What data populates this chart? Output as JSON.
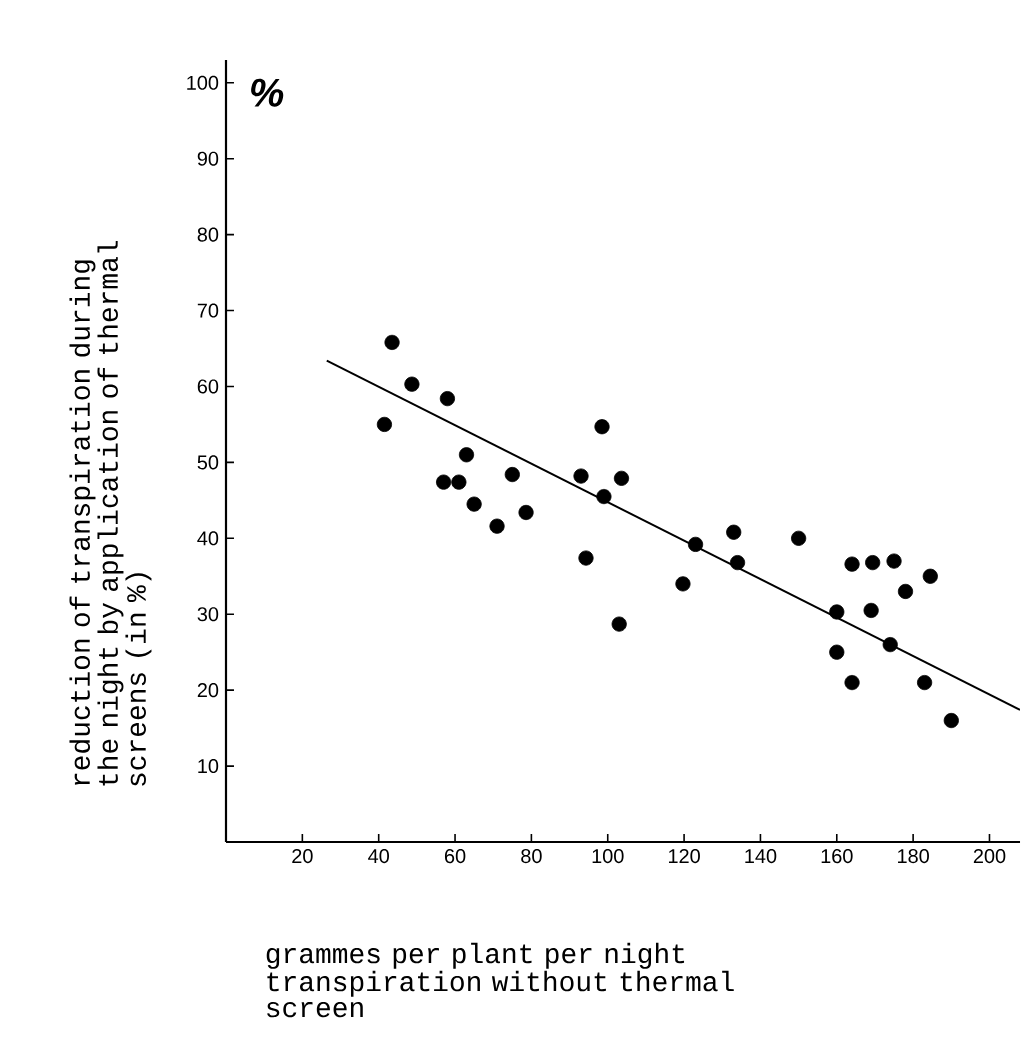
{
  "chart_data": {
    "type": "scatter",
    "xlabel": "grammes per plant per night transpiration without thermal screen",
    "ylabel": "reduction of transpiration during the night by application of thermal screens (in %)",
    "annotations": [
      "%"
    ],
    "xlim": [
      0,
      208
    ],
    "ylim": [
      0,
      103
    ],
    "xticks": [
      20,
      40,
      60,
      80,
      100,
      120,
      140,
      160,
      180,
      200
    ],
    "yticks": [
      10,
      20,
      30,
      40,
      50,
      60,
      70,
      80,
      90,
      100
    ],
    "grid": false,
    "series": [
      {
        "color": "#000000",
        "marker": "circle",
        "x": [
          43.5,
          48.7,
          58,
          41.5,
          98.5,
          63,
          57,
          61,
          75,
          93,
          103.6,
          99,
          65,
          78.6,
          71,
          94.3,
          123,
          119.7,
          103,
          133,
          134,
          150,
          164,
          169.4,
          175,
          184.5,
          178,
          169,
          160,
          160,
          174,
          164,
          183,
          190
        ],
        "values": [
          65.8,
          60.3,
          58.4,
          55,
          54.7,
          51,
          47.4,
          47.4,
          48.4,
          48.2,
          47.9,
          45.5,
          44.5,
          43.4,
          41.6,
          37.4,
          39.2,
          34,
          28.7,
          40.8,
          36.8,
          40,
          36.6,
          36.8,
          37,
          35,
          33,
          30.5,
          30.3,
          25,
          26,
          21,
          21,
          16
        ]
      },
      {
        "type": "line",
        "color": "#000000",
        "marker": "none",
        "line_style": "solid",
        "x": [
          26.4,
          208
        ],
        "values": [
          63.4,
          17.4
        ]
      }
    ]
  }
}
